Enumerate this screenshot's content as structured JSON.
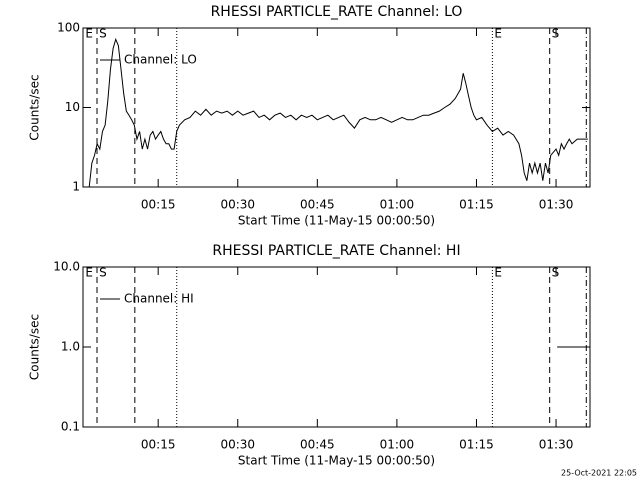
{
  "chart_data": [
    {
      "type": "line",
      "title": "RHESSI PARTICLE_RATE Channel: LO",
      "xlabel": "Start Time (11-May-15 00:00:50)",
      "ylabel": "Counts/sec",
      "xlim": [
        0.83,
        96.4
      ],
      "xticks": [
        {
          "value": 15,
          "label": "00:15"
        },
        {
          "value": 30,
          "label": "00:30"
        },
        {
          "value": 45,
          "label": "00:45"
        },
        {
          "value": 60,
          "label": "01:00"
        },
        {
          "value": 75,
          "label": "01:15"
        },
        {
          "value": 90,
          "label": "01:30"
        }
      ],
      "ylim": [
        1,
        100
      ],
      "yticks": [
        1,
        10,
        100
      ],
      "yscale": "log",
      "legend": "upper left",
      "vlines": [
        {
          "x": 3.47,
          "style": "dashed"
        },
        {
          "x": 10.6,
          "style": "dashed"
        },
        {
          "x": 18.5,
          "style": "dotted"
        },
        {
          "x": 78.0,
          "style": "dotted"
        },
        {
          "x": 88.8,
          "style": "dashed"
        },
        {
          "x": 95.7,
          "style": "dashdot"
        }
      ],
      "annotations": [
        {
          "text": "E",
          "x": 0.9
        },
        {
          "text": "S",
          "x": 3.5
        },
        {
          "text": "E",
          "x": 78.0
        },
        {
          "text": "S",
          "x": 88.8
        }
      ],
      "x": [
        2.0,
        2.5,
        3.0,
        3.5,
        4.0,
        4.5,
        5.0,
        5.5,
        6.0,
        6.5,
        7.0,
        7.5,
        8.0,
        8.5,
        9.0,
        9.5,
        10.0,
        10.5,
        11.0,
        11.5,
        12.0,
        12.5,
        13.0,
        13.5,
        14.0,
        14.5,
        15.0,
        15.5,
        16.0,
        16.5,
        17.0,
        17.5,
        18.0,
        18.5,
        19,
        20,
        21,
        22,
        23,
        24,
        25,
        26,
        27,
        28,
        29,
        30,
        31,
        32,
        33,
        34,
        35,
        36,
        37,
        38,
        39,
        40,
        41,
        42,
        43,
        44,
        45,
        46,
        47,
        48,
        49,
        50,
        51,
        52,
        53,
        54,
        55,
        56,
        57,
        58,
        59,
        60,
        61,
        62,
        63,
        64,
        65,
        66,
        67,
        68,
        69,
        70,
        71,
        72,
        72.5,
        73,
        73.5,
        74,
        74.5,
        75,
        76,
        77,
        78,
        79,
        80,
        81,
        82,
        83,
        83.5,
        84,
        84.5,
        85,
        85.5,
        86,
        86.5,
        87,
        87.5,
        88,
        88.5,
        89,
        90,
        90.5,
        91,
        91.5,
        92,
        92.5,
        93,
        94,
        95,
        96
      ],
      "series": [
        {
          "name": "Channel: LO",
          "color": "#000000",
          "values": [
            1,
            2.0,
            2.5,
            3.5,
            3,
            5,
            6,
            12,
            30,
            55,
            72,
            60,
            30,
            15,
            9,
            8,
            7,
            6,
            4,
            5,
            3,
            4,
            3,
            4.5,
            5,
            4,
            4.5,
            5,
            4,
            3.5,
            3.5,
            3,
            3,
            5,
            6,
            7,
            7.5,
            9,
            8,
            9.5,
            8,
            9,
            8.5,
            9,
            8,
            9,
            8,
            8.5,
            9,
            7.5,
            8,
            7,
            8,
            8.5,
            7.5,
            8,
            7,
            8,
            7.5,
            8,
            7,
            7.5,
            8,
            7,
            7.5,
            8,
            6.5,
            5.5,
            7,
            7.5,
            7,
            7,
            7.5,
            7,
            6.5,
            7,
            7.5,
            7,
            7,
            7.5,
            8,
            8,
            8.5,
            9,
            10,
            11,
            13,
            17,
            27,
            20,
            14,
            10,
            8,
            7,
            7.5,
            6,
            5,
            5.5,
            4.5,
            5,
            4.5,
            3.5,
            2.5,
            1.5,
            1.2,
            2,
            1.5,
            2,
            1.5,
            2,
            1.2,
            2,
            1.5,
            2.5,
            3,
            2.5,
            3.5,
            3,
            3.5,
            4,
            3.5,
            4,
            4,
            4
          ]
        }
      ]
    },
    {
      "type": "line",
      "title": "RHESSI PARTICLE_RATE Channel: HI",
      "xlabel": "Start Time (11-May-15 00:00:50)",
      "ylabel": "Counts/sec",
      "xlim": [
        0.83,
        96.4
      ],
      "xticks": [
        {
          "value": 15,
          "label": "00:15"
        },
        {
          "value": 30,
          "label": "00:30"
        },
        {
          "value": 45,
          "label": "00:45"
        },
        {
          "value": 60,
          "label": "01:00"
        },
        {
          "value": 75,
          "label": "01:15"
        },
        {
          "value": 90,
          "label": "01:30"
        }
      ],
      "ylim": [
        0.1,
        10
      ],
      "yticks": [
        0.1,
        {
          "value": 1,
          "label": "1.0"
        },
        {
          "value": 10,
          "label": "10.0"
        }
      ],
      "yscale": "log",
      "legend": "upper left",
      "vlines": [
        {
          "x": 3.47,
          "style": "dashed"
        },
        {
          "x": 10.6,
          "style": "dashed"
        },
        {
          "x": 18.5,
          "style": "dotted"
        },
        {
          "x": 78.0,
          "style": "dotted"
        },
        {
          "x": 88.8,
          "style": "dashed"
        },
        {
          "x": 95.7,
          "style": "dashdot"
        }
      ],
      "annotations": [
        {
          "text": "E",
          "x": 0.9
        },
        {
          "text": "S",
          "x": 3.5
        },
        {
          "text": "E",
          "x": 78.0
        },
        {
          "text": "S",
          "x": 88.8
        }
      ],
      "x": [
        90.2,
        96.3
      ],
      "series": [
        {
          "name": "Channel: HI",
          "color": "#000000",
          "values": [
            1,
            1
          ]
        }
      ]
    }
  ],
  "footer": "25-Oct-2021 22:05"
}
